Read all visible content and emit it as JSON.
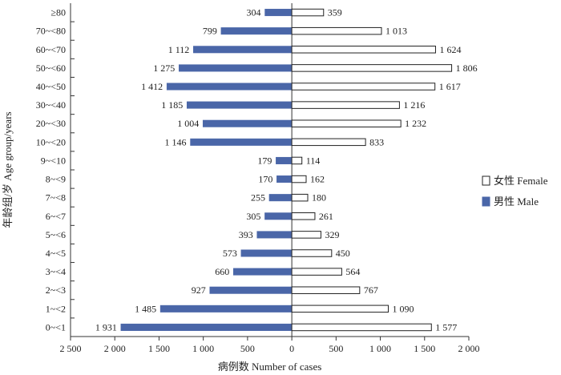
{
  "chart_data": {
    "type": "bar",
    "orientation": "horizontal",
    "layout": "population-pyramid",
    "categories": [
      "≥80",
      "70~<80",
      "60~<70",
      "50~<60",
      "40~<50",
      "30~<40",
      "20~<30",
      "10~<20",
      "9~<10",
      "8~<9",
      "7~<8",
      "6~<7",
      "5~<6",
      "4~<5",
      "3~<4",
      "2~<3",
      "1~<2",
      "0~<1"
    ],
    "series": [
      {
        "name": "男性 Male",
        "side": "left",
        "color": "#4a66a8",
        "values": [
          304,
          799,
          1112,
          1275,
          1412,
          1185,
          1004,
          1146,
          179,
          170,
          255,
          305,
          393,
          573,
          660,
          927,
          1485,
          1931
        ],
        "value_labels": [
          "304",
          "799",
          "1 112",
          "1 275",
          "1 412",
          "1 185",
          "1 004",
          "1 146",
          "179",
          "170",
          "255",
          "305",
          "393",
          "573",
          "660",
          "927",
          "1 485",
          "1 931"
        ]
      },
      {
        "name": "女性 Female",
        "side": "right",
        "color": "#ffffff",
        "values": [
          359,
          1013,
          1624,
          1806,
          1617,
          1216,
          1232,
          833,
          114,
          162,
          180,
          261,
          329,
          450,
          564,
          767,
          1090,
          1577
        ],
        "value_labels": [
          "359",
          "1 013",
          "1 624",
          "1 806",
          "1 617",
          "1 216",
          "1 232",
          "833",
          "114",
          "162",
          "180",
          "261",
          "329",
          "450",
          "564",
          "767",
          "1 090",
          "1 577"
        ]
      }
    ],
    "xlabel": "病例数  Number of cases",
    "ylabel": "年龄组/岁 Age group/years",
    "xlim": [
      -2500,
      2000
    ],
    "xticks": [
      -2500,
      -2000,
      -1500,
      -1000,
      -500,
      0,
      500,
      1000,
      1500,
      2000
    ],
    "xtick_labels": [
      "2 500",
      "2 000",
      "1 500",
      "1 000",
      "500",
      "0",
      "500",
      "1 000",
      "1 500",
      "2 000"
    ],
    "grid": false,
    "legend_position": "right",
    "legend": [
      {
        "label": "女性 Female",
        "style": "outline"
      },
      {
        "label": "男性 Male",
        "style": "filled"
      }
    ]
  }
}
